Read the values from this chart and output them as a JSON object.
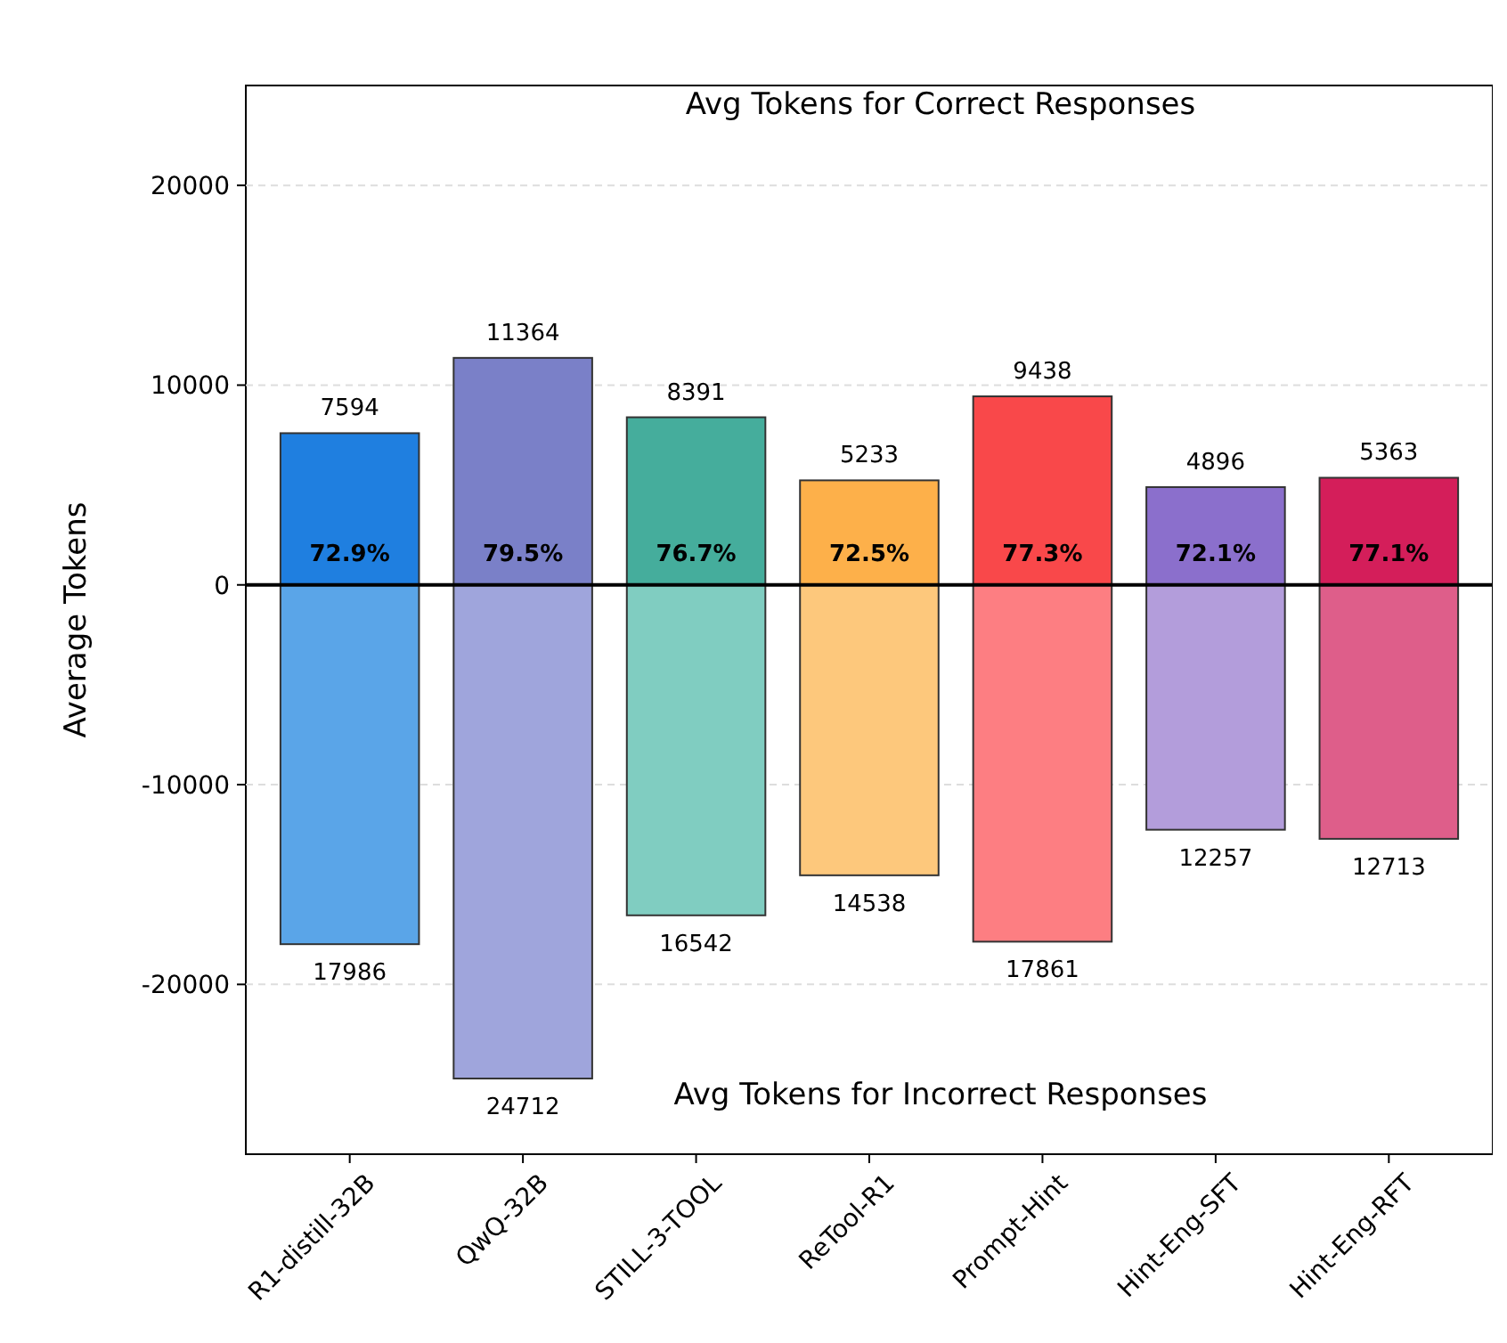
{
  "chart_data": {
    "type": "bar",
    "ylabel": "Average Tokens",
    "categories": [
      "R1-distill-32B",
      "QwQ-32B",
      "STILL-3-TOOL",
      "ReTool-R1",
      "Prompt-Hint",
      "Hint-Eng-SFT",
      "Hint-Eng-RFT"
    ],
    "stacked": true,
    "series": [
      {
        "colors": [
          "#1f7fe0",
          "#7a80c8",
          "#45ad9c",
          "#fdb04a",
          "#f9484a",
          "#8b6fcc",
          "#d41e5a"
        ],
        "values": [
          7594,
          11364,
          8391,
          5233,
          9438,
          4896,
          5363
        ],
        "value_labels": [
          "7594",
          "11364",
          "8391",
          "5233",
          "9438",
          "4896",
          "5363"
        ]
      },
      {
        "colors": [
          "#5aa5e8",
          "#9fa5dc",
          "#80cdc1",
          "#fdc87c",
          "#fd7e82",
          "#b39ddb",
          "#de5e8a"
        ],
        "values": [
          -17986,
          -24712,
          -16542,
          -14538,
          -17861,
          -12257,
          -12713
        ]
      }
    ],
    "ylim": [
      -28500,
      25000
    ],
    "yticks": [
      20000,
      10000,
      0,
      -10000,
      -20000
    ],
    "grid": "y",
    "ref_lines": [
      {
        "axis": "y",
        "value": 0,
        "color": "#000000"
      }
    ],
    "annotations": [
      "Avg Tokens for Correct Responses",
      "Avg Tokens for Incorrect Responses",
      "72.9%",
      "79.5%",
      "76.7%",
      "72.5%",
      "77.3%",
      "72.1%",
      "77.1%",
      "17986",
      "24712",
      "16542",
      "14538",
      "17861",
      "12257",
      "12713"
    ]
  }
}
